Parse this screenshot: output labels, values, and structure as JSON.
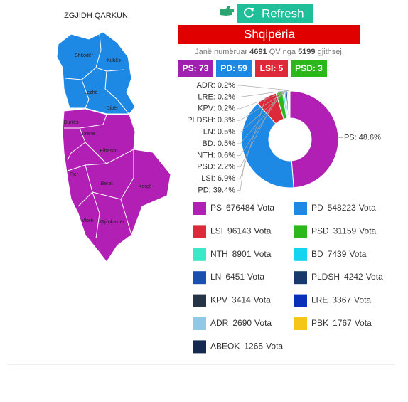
{
  "map": {
    "title": "ZGJIDH QARKUN",
    "regions": [
      "Shkodër",
      "Kukës",
      "Lezhë",
      "Dibër",
      "Durrës",
      "Tiranë",
      "Elbasan",
      "Fier",
      "Berat",
      "Korçë",
      "Vlorë",
      "Gjirokastër"
    ]
  },
  "header": {
    "button": "Refresh",
    "banner": "Shqipëria",
    "counted": {
      "prefix": "Janë numëruar",
      "counted": 4691,
      "middle": "QV nga",
      "total": 5199,
      "suffix": "gjithsej."
    }
  },
  "seats": [
    {
      "label": "PS: 73",
      "color": "#a020b0"
    },
    {
      "label": "PD: 59",
      "color": "#1e88e5"
    },
    {
      "label": "LSI: 5",
      "color": "#dc2a3a"
    },
    {
      "label": "PSD: 3",
      "color": "#2cb81b"
    }
  ],
  "chart_data": {
    "type": "pie",
    "donut": true,
    "categories": [
      "PS",
      "PD",
      "LSI",
      "PSD",
      "NTH",
      "BD",
      "LN",
      "PLDSH",
      "KPV",
      "LRE",
      "ADR"
    ],
    "values": [
      48.6,
      39.4,
      6.9,
      2.2,
      0.6,
      0.5,
      0.5,
      0.3,
      0.2,
      0.2,
      0.2
    ],
    "value_labels": [
      "PS: 48.6%",
      "PD: 39.4%",
      "LSI: 6.9%",
      "PSD: 2.2%",
      "NTH: 0.6%",
      "BD: 0.5%",
      "LN: 0.5%",
      "PLDSH: 0.3%",
      "KPV: 0.2%",
      "LRE: 0.2%",
      "ADR: 0.2%"
    ],
    "colors": [
      "#b21fb5",
      "#1e88e5",
      "#dc2a3a",
      "#2cb81b",
      "#3be8c8",
      "#14d4f0",
      "#1a4fb0",
      "#173a6a",
      "#253545",
      "#0a2fb8",
      "#90c8e6"
    ]
  },
  "legend": [
    {
      "name": "PS",
      "votes": 676484,
      "unit": "Vota",
      "color": "#b21fb5"
    },
    {
      "name": "PD",
      "votes": 548223,
      "unit": "Vota",
      "color": "#1e88e5"
    },
    {
      "name": "LSI",
      "votes": 96143,
      "unit": "Vota",
      "color": "#dc2a3a"
    },
    {
      "name": "PSD",
      "votes": 31159,
      "unit": "Vota",
      "color": "#2cb81b"
    },
    {
      "name": "NTH",
      "votes": 8901,
      "unit": "Vota",
      "color": "#3be8c8"
    },
    {
      "name": "BD",
      "votes": 7439,
      "unit": "Vota",
      "color": "#14d4f0"
    },
    {
      "name": "LN",
      "votes": 6451,
      "unit": "Vota",
      "color": "#1a4fb0"
    },
    {
      "name": "PLDSH",
      "votes": 4242,
      "unit": "Vota",
      "color": "#173a6a"
    },
    {
      "name": "KPV",
      "votes": 3414,
      "unit": "Vota",
      "color": "#253545"
    },
    {
      "name": "LRE",
      "votes": 3367,
      "unit": "Vota",
      "color": "#0a2fb8"
    },
    {
      "name": "ADR",
      "votes": 2690,
      "unit": "Vota",
      "color": "#90c8e6"
    },
    {
      "name": "PBK",
      "votes": 1767,
      "unit": "Vota",
      "color": "#f5c518"
    },
    {
      "name": "ABEOK",
      "votes": 1265,
      "unit": "Vota",
      "color": "#152a50"
    }
  ]
}
